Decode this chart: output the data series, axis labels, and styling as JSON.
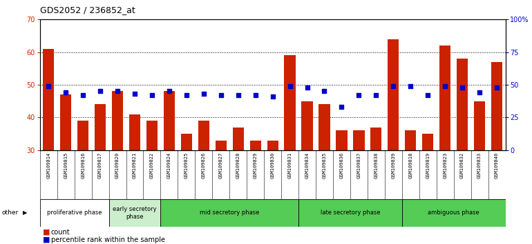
{
  "title": "GDS2052 / 236852_at",
  "samples": [
    "GSM109814",
    "GSM109815",
    "GSM109816",
    "GSM109817",
    "GSM109820",
    "GSM109821",
    "GSM109822",
    "GSM109824",
    "GSM109825",
    "GSM109826",
    "GSM109827",
    "GSM109828",
    "GSM109829",
    "GSM109830",
    "GSM109831",
    "GSM109834",
    "GSM109835",
    "GSM109836",
    "GSM109837",
    "GSM109838",
    "GSM109839",
    "GSM109818",
    "GSM109819",
    "GSM109823",
    "GSM109832",
    "GSM109833",
    "GSM109840"
  ],
  "counts": [
    61,
    47,
    39,
    44,
    48,
    41,
    39,
    48,
    35,
    39,
    33,
    37,
    33,
    33,
    59,
    45,
    44,
    36,
    36,
    37,
    64,
    36,
    35,
    62,
    58,
    45,
    57
  ],
  "percentiles_right": [
    49,
    44,
    42,
    45,
    45,
    43,
    42,
    45,
    42,
    43,
    42,
    42,
    42,
    41,
    49,
    48,
    45,
    33,
    42,
    42,
    49,
    49,
    42,
    49,
    48,
    44,
    48
  ],
  "ylim_left": [
    30,
    70
  ],
  "ylim_right": [
    0,
    100
  ],
  "yticks_left": [
    30,
    40,
    50,
    60,
    70
  ],
  "yticks_right": [
    0,
    25,
    50,
    75,
    100
  ],
  "ytick_labels_right": [
    "0",
    "25",
    "50",
    "75",
    "100%"
  ],
  "bar_color": "#cc2200",
  "dot_color": "#0000cc",
  "plot_bg": "#ffffff",
  "label_bg": "#d0d0d0",
  "phases": [
    {
      "label": "proliferative phase",
      "start": 0,
      "end": 4,
      "color": "#ffffff"
    },
    {
      "label": "early secretory\nphase",
      "start": 4,
      "end": 7,
      "color": "#cceecc"
    },
    {
      "label": "mid secretory phase",
      "start": 7,
      "end": 15,
      "color": "#55cc55"
    },
    {
      "label": "late secretory phase",
      "start": 15,
      "end": 21,
      "color": "#55cc55"
    },
    {
      "label": "ambiguous phase",
      "start": 21,
      "end": 27,
      "color": "#55cc55"
    }
  ],
  "legend_count_label": "count",
  "legend_pct_label": "percentile rank within the sample",
  "other_label": "other"
}
